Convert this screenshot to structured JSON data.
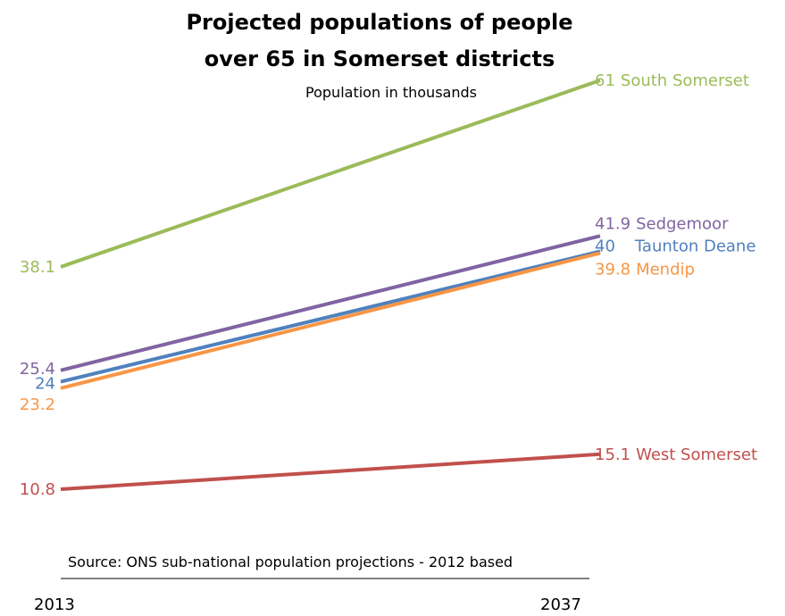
{
  "chart_data": {
    "type": "line",
    "title_line1": "Projected populations of people",
    "title_line2": "over 65 in Somerset districts",
    "subtitle": "Population in thousands",
    "source": "Source: ONS sub-national population projections - 2012 based",
    "x": [
      "2013",
      "2037"
    ],
    "ylim": [
      10.8,
      61
    ],
    "grid": false,
    "series": [
      {
        "name": "South Somerset",
        "values": [
          38.1,
          61
        ],
        "start_label": "38.1",
        "end_label": "61",
        "color": "#9bbb59"
      },
      {
        "name": "Sedgemoor",
        "values": [
          25.4,
          41.9
        ],
        "start_label": "25.4",
        "end_label": "41.9",
        "color": "#8064a2"
      },
      {
        "name": "Taunton Deane",
        "values": [
          24,
          40
        ],
        "start_label": "24",
        "end_label": "40",
        "color": "#4f81bd"
      },
      {
        "name": "Mendip",
        "values": [
          23.2,
          39.8
        ],
        "start_label": "23.2",
        "end_label": "39.8",
        "color": "#f79646"
      },
      {
        "name": "West Somerset",
        "values": [
          10.8,
          15.1
        ],
        "start_label": "10.8",
        "end_label": "15.1",
        "color": "#c0504d"
      }
    ]
  }
}
